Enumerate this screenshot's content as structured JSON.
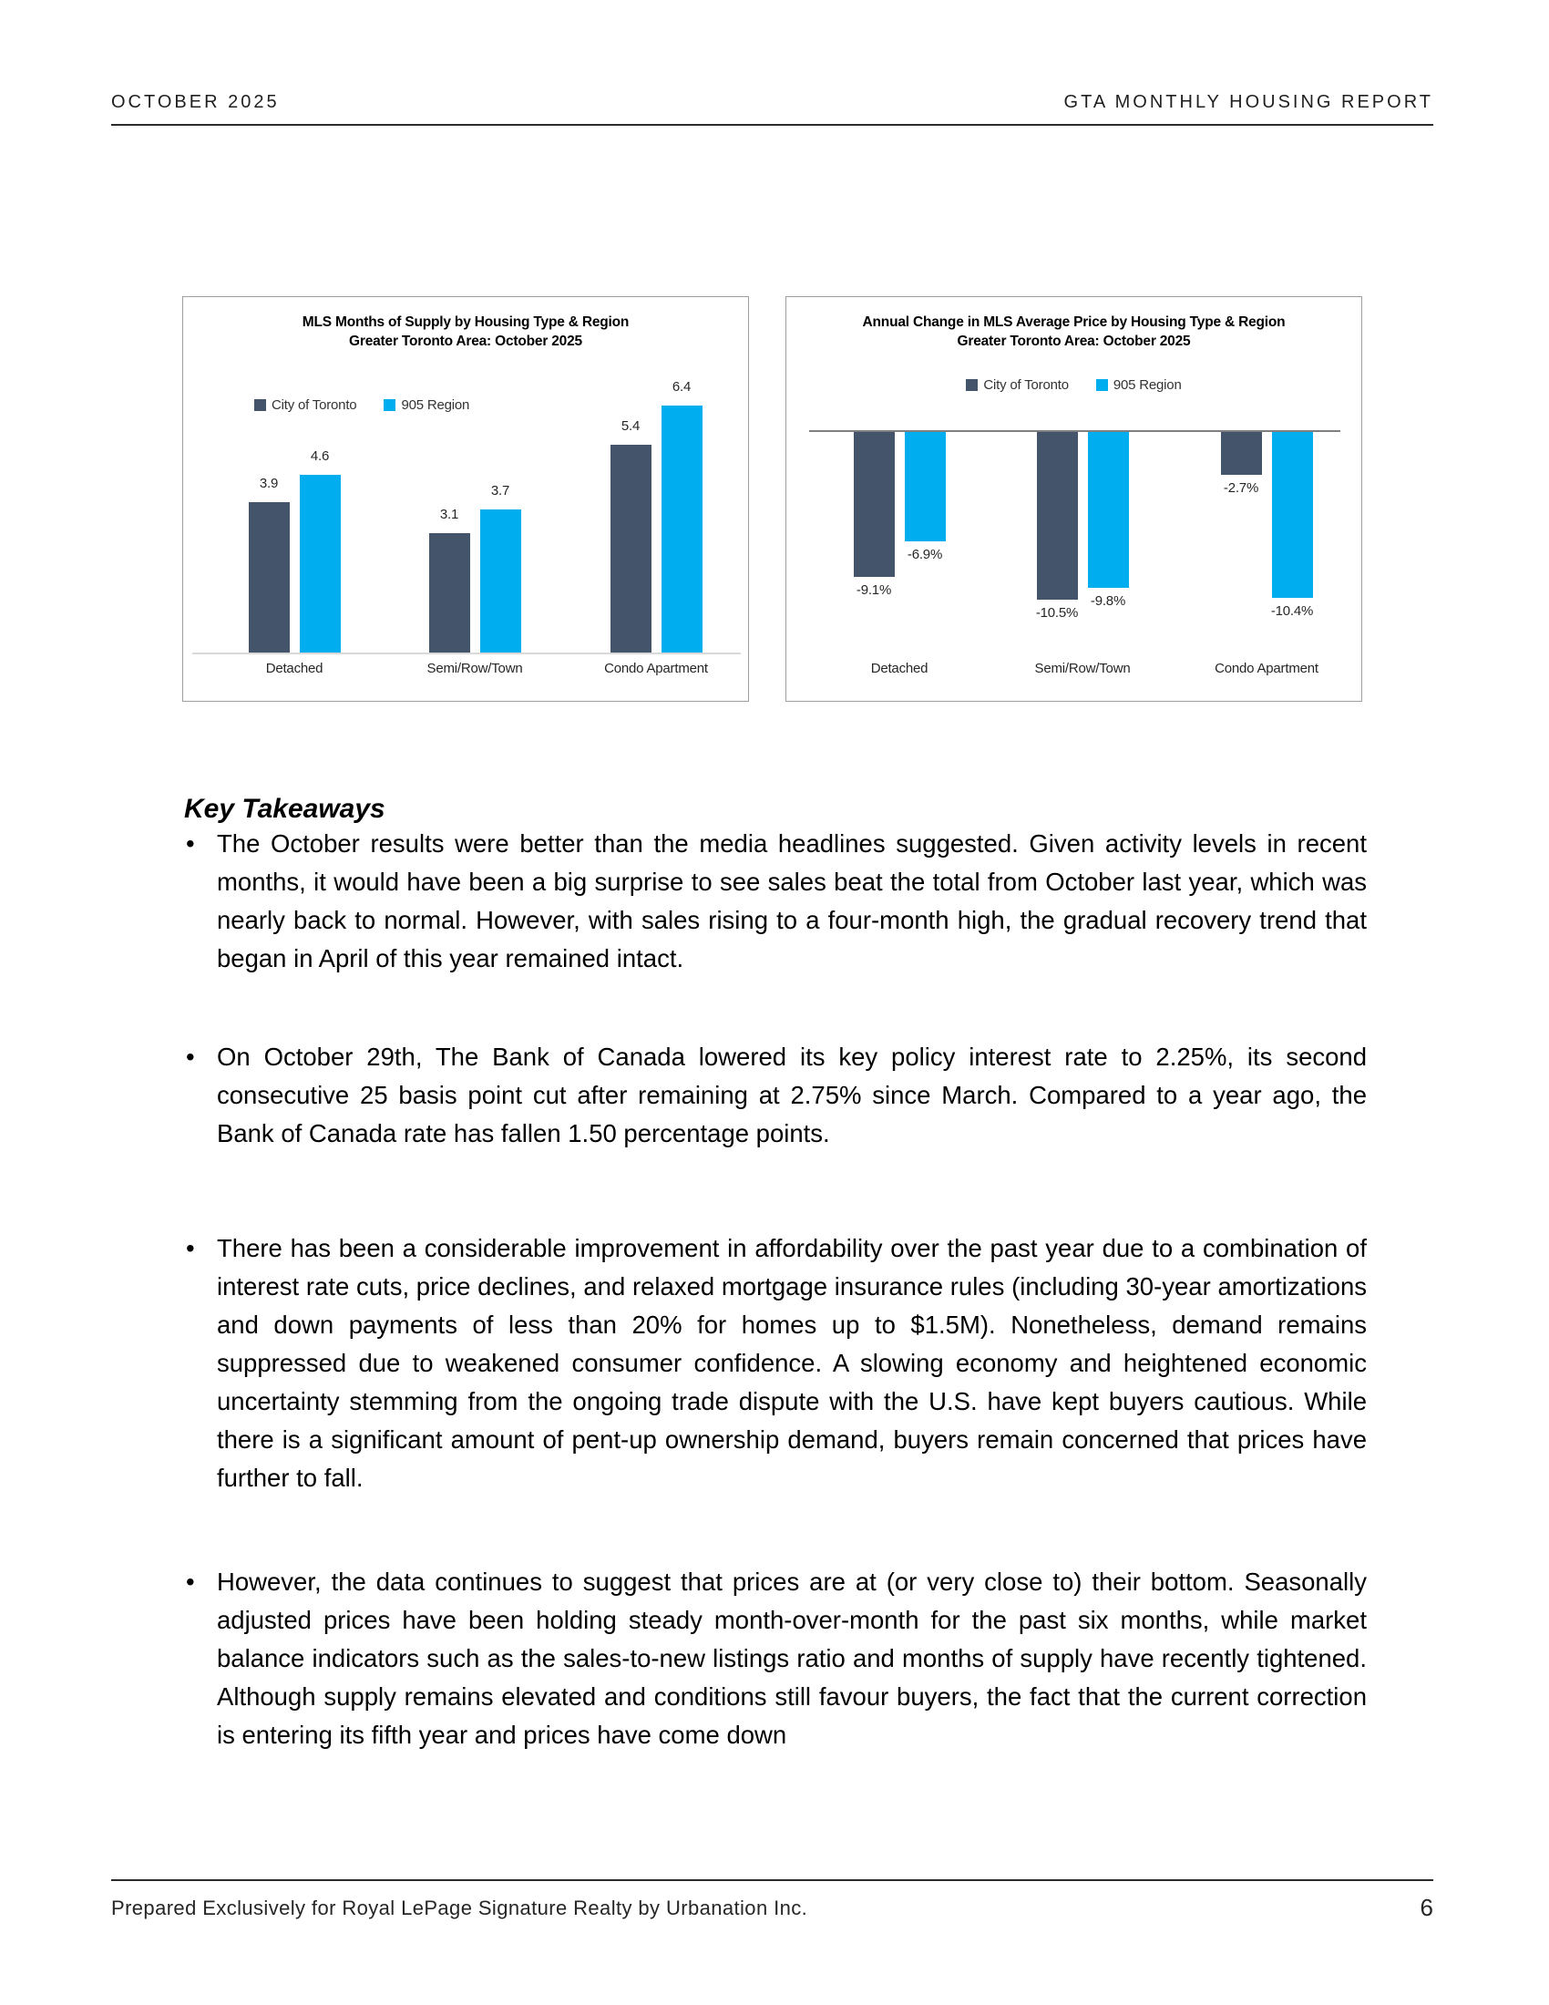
{
  "header": {
    "left": "OCTOBER 2025",
    "right": "GTA MONTHLY HOUSING REPORT"
  },
  "chart_data": [
    {
      "type": "bar",
      "title": "MLS Months of Supply by Housing Type & Region",
      "subtitle": "Greater Toronto Area: October 2025",
      "categories": [
        "Detached",
        "Semi/Row/Town",
        "Condo Apartment"
      ],
      "series": [
        {
          "name": "City of Toronto",
          "color": "#44546A",
          "values": [
            3.9,
            3.1,
            5.4
          ]
        },
        {
          "name": "905 Region",
          "color": "#00AEEF",
          "values": [
            4.6,
            3.7,
            6.4
          ]
        }
      ],
      "value_labels": [
        [
          "3.9",
          "3.1",
          "5.4"
        ],
        [
          "4.6",
          "3.7",
          "6.4"
        ]
      ],
      "ylim": [
        0,
        7
      ],
      "grid": false,
      "legend_position": "left"
    },
    {
      "type": "bar",
      "title": "Annual Change in MLS Average Price by Housing Type & Region",
      "subtitle": "Greater Toronto Area: October 2025",
      "categories": [
        "Detached",
        "Semi/Row/Town",
        "Condo Apartment"
      ],
      "series": [
        {
          "name": "City of Toronto",
          "color": "#44546A",
          "values": [
            -9.1,
            -10.5,
            -2.7
          ]
        },
        {
          "name": "905 Region",
          "color": "#00AEEF",
          "values": [
            -6.9,
            -9.8,
            -10.4
          ]
        }
      ],
      "value_labels": [
        [
          "-9.1%",
          "-10.5%",
          "-2.7%"
        ],
        [
          "-6.9%",
          "-9.8%",
          "-10.4%"
        ]
      ],
      "ylim": [
        -12,
        0
      ],
      "grid": false,
      "legend_position": "center"
    }
  ],
  "body": {
    "heading": "Key Takeaways",
    "bullets": [
      "The October results were better than the media headlines suggested. Given activity levels in recent months, it would have been a big surprise to see sales beat the total from October last year, which was nearly back to normal. However, with sales rising to a four-month high, the gradual recovery trend that began in April of this year remained intact.",
      "On October 29th, The Bank of Canada lowered its key policy interest rate to 2.25%, its second consecutive 25 basis point cut after remaining at 2.75% since March. Compared to a year ago, the Bank of Canada rate has fallen 1.50 percentage points.",
      "There has been a considerable improvement in affordability over the past year due to a combination of interest rate cuts, price declines, and relaxed mortgage insurance rules (including 30-year amortizations and down payments of less than 20% for homes up to $1.5M). Nonetheless, demand remains suppressed due to weakened consumer confidence. A slowing economy and heightened economic uncertainty stemming from the ongoing trade dispute with the U.S. have kept buyers cautious. While there is a significant amount of pent-up ownership demand, buyers remain concerned that prices have further to fall.",
      "However, the data continues to suggest that prices are at (or very close to) their bottom. Seasonally adjusted prices have been holding steady month-over-month for the past six months, while market balance indicators such as the sales-to-new listings ratio and months of supply have recently tightened. Although supply remains elevated and conditions still favour buyers, the fact that the current correction is entering its fifth year and prices have come down"
    ]
  },
  "footer": {
    "text": "Prepared Exclusively for Royal LePage Signature Realty by Urbanation Inc.",
    "page": "6"
  }
}
